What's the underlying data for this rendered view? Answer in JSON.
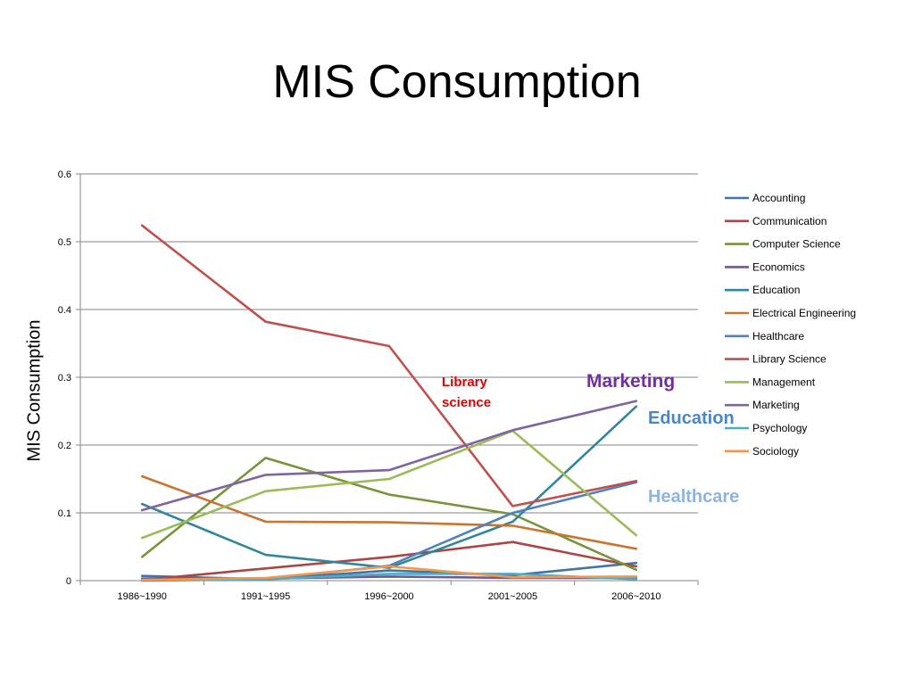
{
  "title": "MIS Consumption",
  "colors": {
    "Accounting": "#4572a7",
    "Communication": "#aa4643",
    "Computer Science": "#77933c",
    "Economics": "#71588f",
    "Education": "#31859c",
    "Electrical Engineering": "#c9752f",
    "Healthcare": "#4f81bd",
    "Library Science": "#c0504d",
    "Management": "#9bbb59",
    "Marketing": "#8064a2",
    "Psychology": "#4bacc6",
    "Sociology": "#f79646"
  },
  "annotations": [
    {
      "text_lines": [
        "Library",
        "science"
      ],
      "color": "#e00000",
      "size": 15
    },
    {
      "text_lines": [
        "Marketing"
      ],
      "color": "#7030a0",
      "size": 21
    },
    {
      "text_lines": [
        "Education"
      ],
      "color": "#4a86c8",
      "size": 20
    },
    {
      "text_lines": [
        "Healthcare"
      ],
      "color": "#8db3e2",
      "size": 20
    }
  ],
  "chart_data": {
    "type": "line",
    "title": "",
    "xlabel": "",
    "ylabel": "MIS Consumption",
    "categories": [
      "1986~1990",
      "1991~1995",
      "1996~2000",
      "2001~2005",
      "2006~2010"
    ],
    "ylim": [
      0,
      0.6
    ],
    "yticks": [
      "0",
      "0.1",
      "0.2",
      "0.3",
      "0.4",
      "0.5",
      "0.6"
    ],
    "grid": true,
    "legend_position": "right",
    "series": [
      {
        "name": "Accounting",
        "values": [
          0.007,
          0.002,
          0.015,
          0.008,
          0.026
        ]
      },
      {
        "name": "Communication",
        "values": [
          0.001,
          0.018,
          0.035,
          0.057,
          0.021
        ]
      },
      {
        "name": "Computer Science",
        "values": [
          0.035,
          0.181,
          0.127,
          0.098,
          0.016
        ]
      },
      {
        "name": "Economics",
        "values": [
          0.003,
          0.003,
          0.006,
          0.004,
          0.004
        ]
      },
      {
        "name": "Education",
        "values": [
          0.113,
          0.038,
          0.019,
          0.087,
          0.257
        ]
      },
      {
        "name": "Electrical Engineering",
        "values": [
          0.154,
          0.087,
          0.086,
          0.081,
          0.047
        ]
      },
      {
        "name": "Healthcare",
        "values": [
          0.0,
          0.002,
          0.022,
          0.1,
          0.145
        ]
      },
      {
        "name": "Library Science",
        "values": [
          0.524,
          0.382,
          0.346,
          0.11,
          0.147
        ]
      },
      {
        "name": "Management",
        "values": [
          0.063,
          0.132,
          0.15,
          0.221,
          0.067
        ]
      },
      {
        "name": "Marketing",
        "values": [
          0.104,
          0.156,
          0.163,
          0.222,
          0.265
        ]
      },
      {
        "name": "Psychology",
        "values": [
          0.001,
          0.002,
          0.01,
          0.01,
          0.002
        ]
      },
      {
        "name": "Sociology",
        "values": [
          0.001,
          0.004,
          0.021,
          0.005,
          0.006
        ]
      }
    ]
  }
}
